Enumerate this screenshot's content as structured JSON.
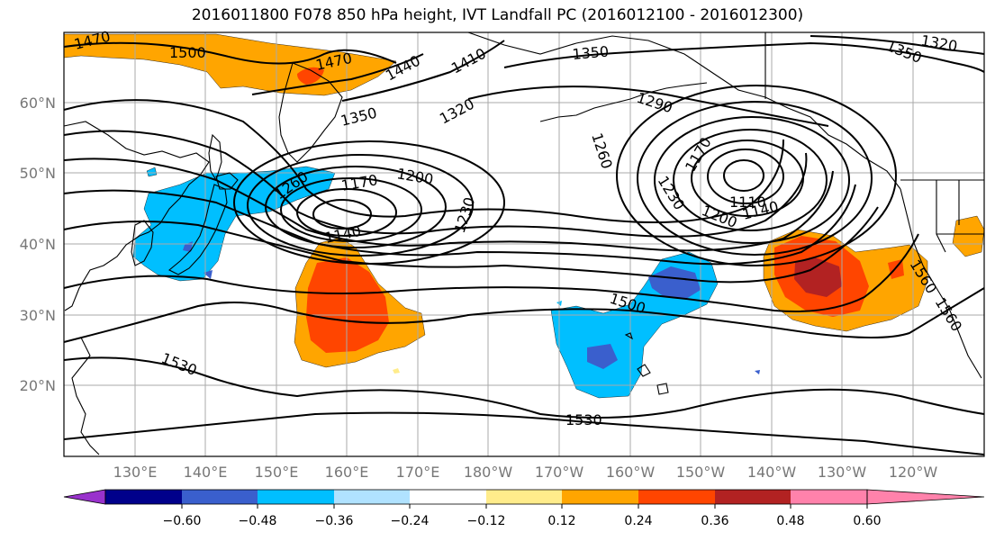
{
  "title": "2016011800 F078 850 hPa height, IVT Landfall PC (2016012100 - 2016012300)",
  "lat_labels": [
    "60°N",
    "50°N",
    "40°N",
    "30°N",
    "20°N"
  ],
  "lon_labels": [
    "130°E",
    "140°E",
    "150°E",
    "160°E",
    "170°E",
    "180°W",
    "170°W",
    "160°W",
    "150°W",
    "140°W",
    "130°W",
    "120°W"
  ],
  "contour_labels": [
    "1470",
    "1500",
    "1470",
    "1440",
    "1410",
    "1350",
    "1320",
    "1350",
    "1320",
    "1290",
    "1260",
    "1350",
    "1260",
    "1170",
    "1200",
    "1230",
    "1140",
    "1170",
    "1230",
    "1200",
    "1140",
    "1110",
    "1500",
    "1560",
    "1560",
    "1530",
    "1530"
  ],
  "colorbar": {
    "ticks": [
      "−0.60",
      "−0.48",
      "−0.36",
      "−0.24",
      "−0.12",
      "0.12",
      "0.24",
      "0.36",
      "0.48",
      "0.60"
    ],
    "colors": [
      "#9932CC",
      "#00008B",
      "#3A5FCD",
      "#00BFFF",
      "#B0E2FF",
      "#FFFFFF",
      "#FFEC8B",
      "#FFA500",
      "#FF4500",
      "#B22222",
      "#FF82AB"
    ]
  },
  "colors": {
    "contour": "#000000",
    "grid": "#aaaaaa",
    "axis_labels": "#777777"
  }
}
